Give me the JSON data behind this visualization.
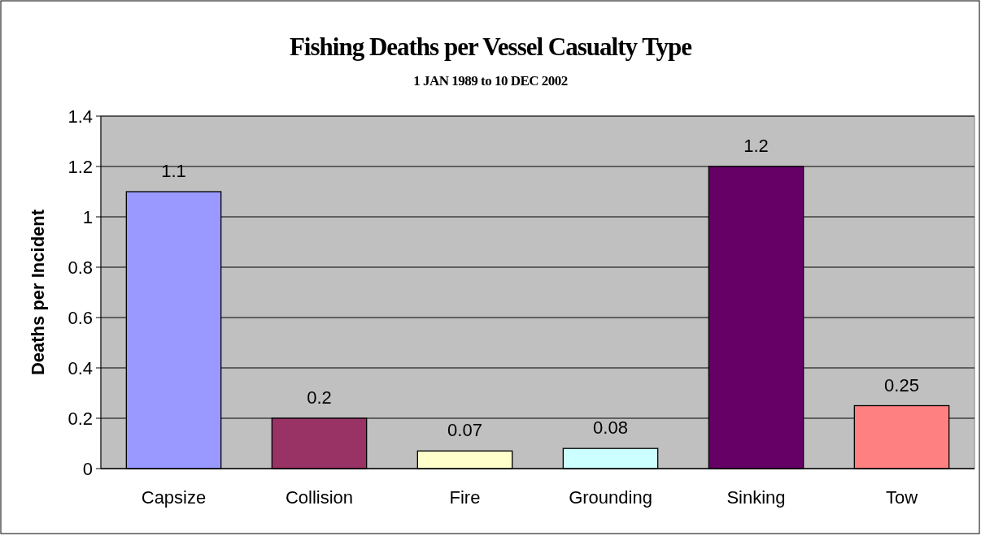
{
  "chart_data": {
    "type": "bar",
    "title": "Fishing Deaths per Vessel Casualty Type",
    "subtitle": "1 JAN 1989 to 10 DEC 2002",
    "ylabel": "Deaths per Incident",
    "categories": [
      "Capsize",
      "Collision",
      "Fire",
      "Grounding",
      "Sinking",
      "Tow"
    ],
    "values": [
      1.1,
      0.2,
      0.07,
      0.08,
      1.2,
      0.25
    ],
    "colors": [
      "#9999ff",
      "#993366",
      "#ffffcc",
      "#ccffff",
      "#660066",
      "#ff8080"
    ],
    "ylim": [
      0,
      1.4
    ],
    "yticks": [
      0,
      0.2,
      0.4,
      0.6,
      0.8,
      1,
      1.2,
      1.4
    ],
    "grid": "y",
    "data_labels": true
  }
}
